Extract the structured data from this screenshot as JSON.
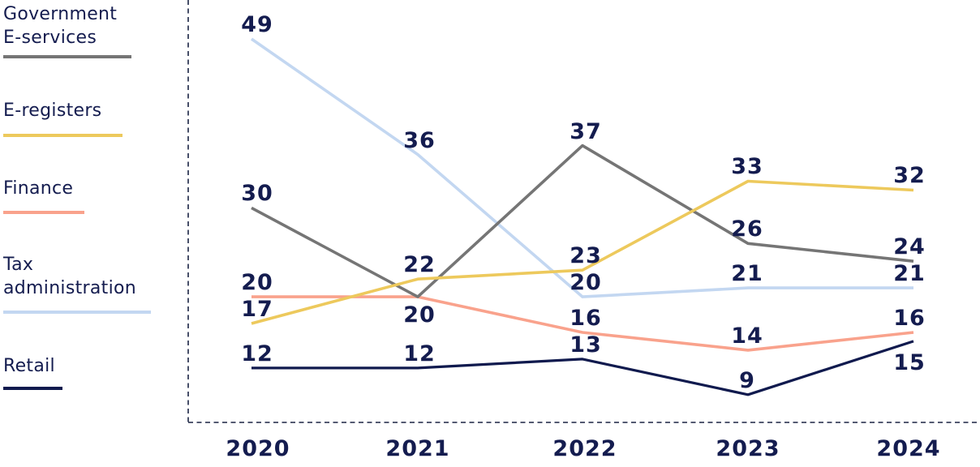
{
  "chart_data": {
    "type": "line",
    "x": [
      "2020",
      "2021",
      "2022",
      "2023",
      "2024"
    ],
    "series": [
      {
        "name": "Tax administration",
        "color_key": "light_blue",
        "values": [
          49,
          36,
          20,
          21,
          21
        ]
      },
      {
        "name": "Finance",
        "color_key": "salmon",
        "values": [
          20,
          20,
          16,
          14,
          16
        ],
        "unlabeled_points": [
          1
        ]
      },
      {
        "name": "Government E-services",
        "color_key": "gray",
        "values": [
          30,
          20,
          37,
          26,
          24
        ],
        "labels_below": [
          1
        ]
      },
      {
        "name": "E-registers",
        "color_key": "yellow",
        "values": [
          17,
          22,
          23,
          33,
          32
        ]
      },
      {
        "name": "Retail",
        "color_key": "navy",
        "values": [
          12,
          12,
          13,
          9,
          15
        ],
        "labels_below": [
          4
        ]
      }
    ],
    "colors": {
      "gray": "#757575",
      "yellow": "#EDC95C",
      "salmon": "#F9A28C",
      "light_blue": "#C3D7F1",
      "navy": "#101A4E",
      "label_text": "#141C4F",
      "axis": "#1B2444"
    },
    "title": "",
    "xlabel": "",
    "ylabel": "",
    "grid": false,
    "axis_style": "dashed-left-and-bottom",
    "legend_position": "left",
    "data_labels_shown": true
  },
  "legend": {
    "items": [
      {
        "lines": [
          "Government",
          "E-services"
        ],
        "color_key": "gray"
      },
      {
        "lines": [
          "E-registers"
        ],
        "color_key": "yellow"
      },
      {
        "lines": [
          "Finance"
        ],
        "color_key": "salmon"
      },
      {
        "lines": [
          "Tax",
          "administration"
        ],
        "color_key": "light_blue"
      },
      {
        "lines": [
          "Retail"
        ],
        "color_key": "navy"
      }
    ]
  }
}
